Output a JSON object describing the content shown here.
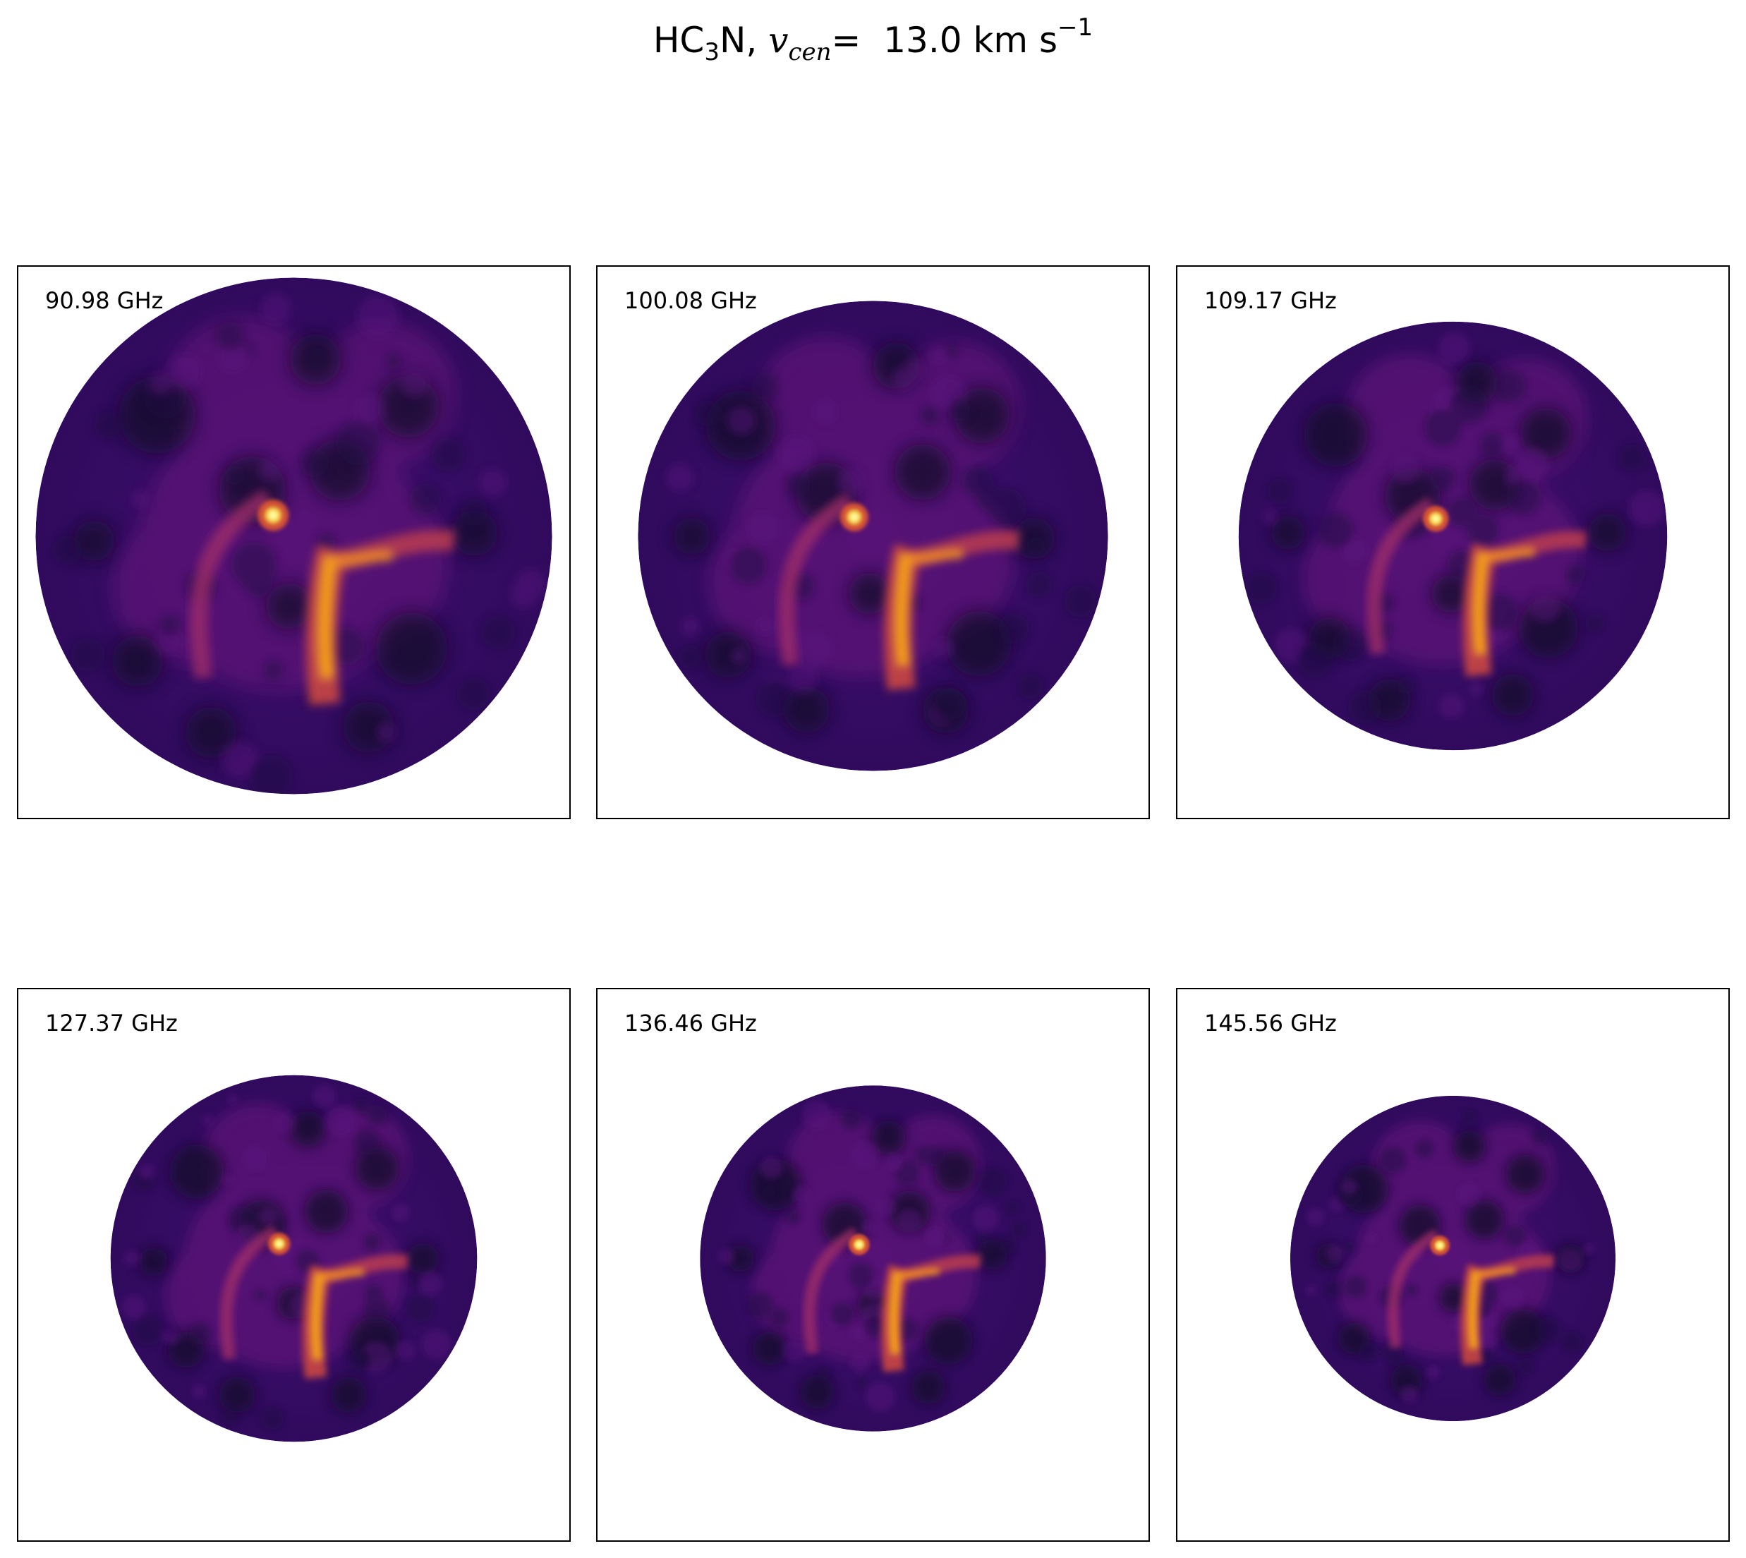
{
  "chart_data": {
    "type": "heatmap",
    "title": {
      "species_prefix": "HC",
      "species_subscript": "3",
      "species_suffix": "N,",
      "velocity_symbol": "v",
      "velocity_subscript": "cen",
      "equals": "=",
      "value": "13.0",
      "unit": "km s",
      "unit_exponent": "−1"
    },
    "colormap": "inferno",
    "layout": {
      "rows": 2,
      "columns": 3
    },
    "axes_visible": false,
    "panels": [
      {
        "label": "90.98 GHz",
        "frequency_ghz": 90.98,
        "beam_radius_rel": 1.0
      },
      {
        "label": "100.08 GHz",
        "frequency_ghz": 100.08,
        "beam_radius_rel": 0.91
      },
      {
        "label": "109.17 GHz",
        "frequency_ghz": 109.17,
        "beam_radius_rel": 0.83
      },
      {
        "label": "127.37 GHz",
        "frequency_ghz": 127.37,
        "beam_radius_rel": 0.71
      },
      {
        "label": "136.46 GHz",
        "frequency_ghz": 136.46,
        "beam_radius_rel": 0.67
      },
      {
        "label": "145.56 GHz",
        "frequency_ghz": 145.56,
        "beam_radius_rel": 0.63
      }
    ]
  }
}
